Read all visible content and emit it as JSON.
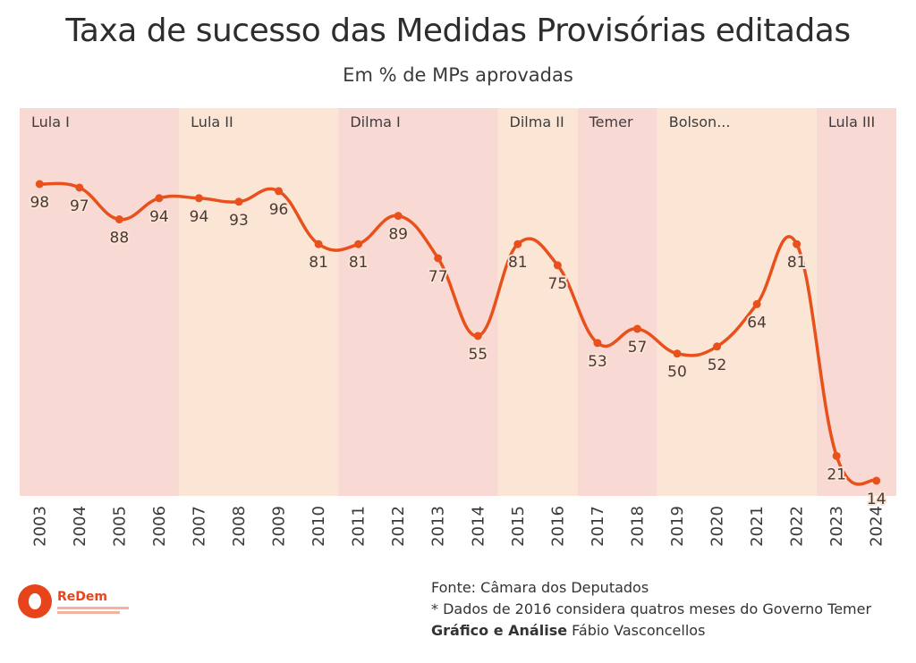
{
  "title": "Taxa de sucesso das Medidas Provisórias editadas",
  "subtitle": "Em % de MPs aprovadas",
  "footer": {
    "source": "Fonte: Câmara dos Deputados",
    "note": "* Dados de 2016 considera quatros meses do Governo Temer",
    "credit_label": "Gráfico e Análise",
    "credit_name": "Fábio Vasconcellos"
  },
  "logo": {
    "name": "ReDem"
  },
  "colors": {
    "line": "#e8501c",
    "band_a": "#f9d9d3",
    "band_b": "#fbe6d6",
    "text": "#333333"
  },
  "chart_data": {
    "type": "line",
    "title": "Taxa de sucesso das Medidas Provisórias editadas",
    "subtitle": "Em % de MPs aprovadas",
    "x": [
      "2003",
      "2004",
      "2005",
      "2006",
      "2007",
      "2008",
      "2009",
      "2010",
      "2011",
      "2012",
      "2013",
      "2014",
      "2015",
      "2016",
      "2017",
      "2018",
      "2019",
      "2020",
      "2021",
      "2022",
      "2023",
      "2024"
    ],
    "series": [
      {
        "values": [
          98,
          97,
          88,
          94,
          94,
          93,
          96,
          81,
          81,
          89,
          77,
          55,
          81,
          75,
          53,
          57,
          50,
          52,
          64,
          81,
          21,
          14
        ]
      }
    ],
    "ylim": [
      10,
      100
    ],
    "grid": false,
    "periods": [
      {
        "label": "Lula I",
        "start": "2003",
        "end": "2006"
      },
      {
        "label": "Lula II",
        "start": "2007",
        "end": "2010"
      },
      {
        "label": "Dilma I",
        "start": "2011",
        "end": "2014"
      },
      {
        "label": "Dilma II",
        "start": "2015",
        "end": "2016"
      },
      {
        "label": "Temer",
        "start": "2017",
        "end": "2018"
      },
      {
        "label": "Bolson...",
        "start": "2019",
        "end": "2022"
      },
      {
        "label": "Lula III",
        "start": "2023",
        "end": "2024"
      }
    ]
  }
}
